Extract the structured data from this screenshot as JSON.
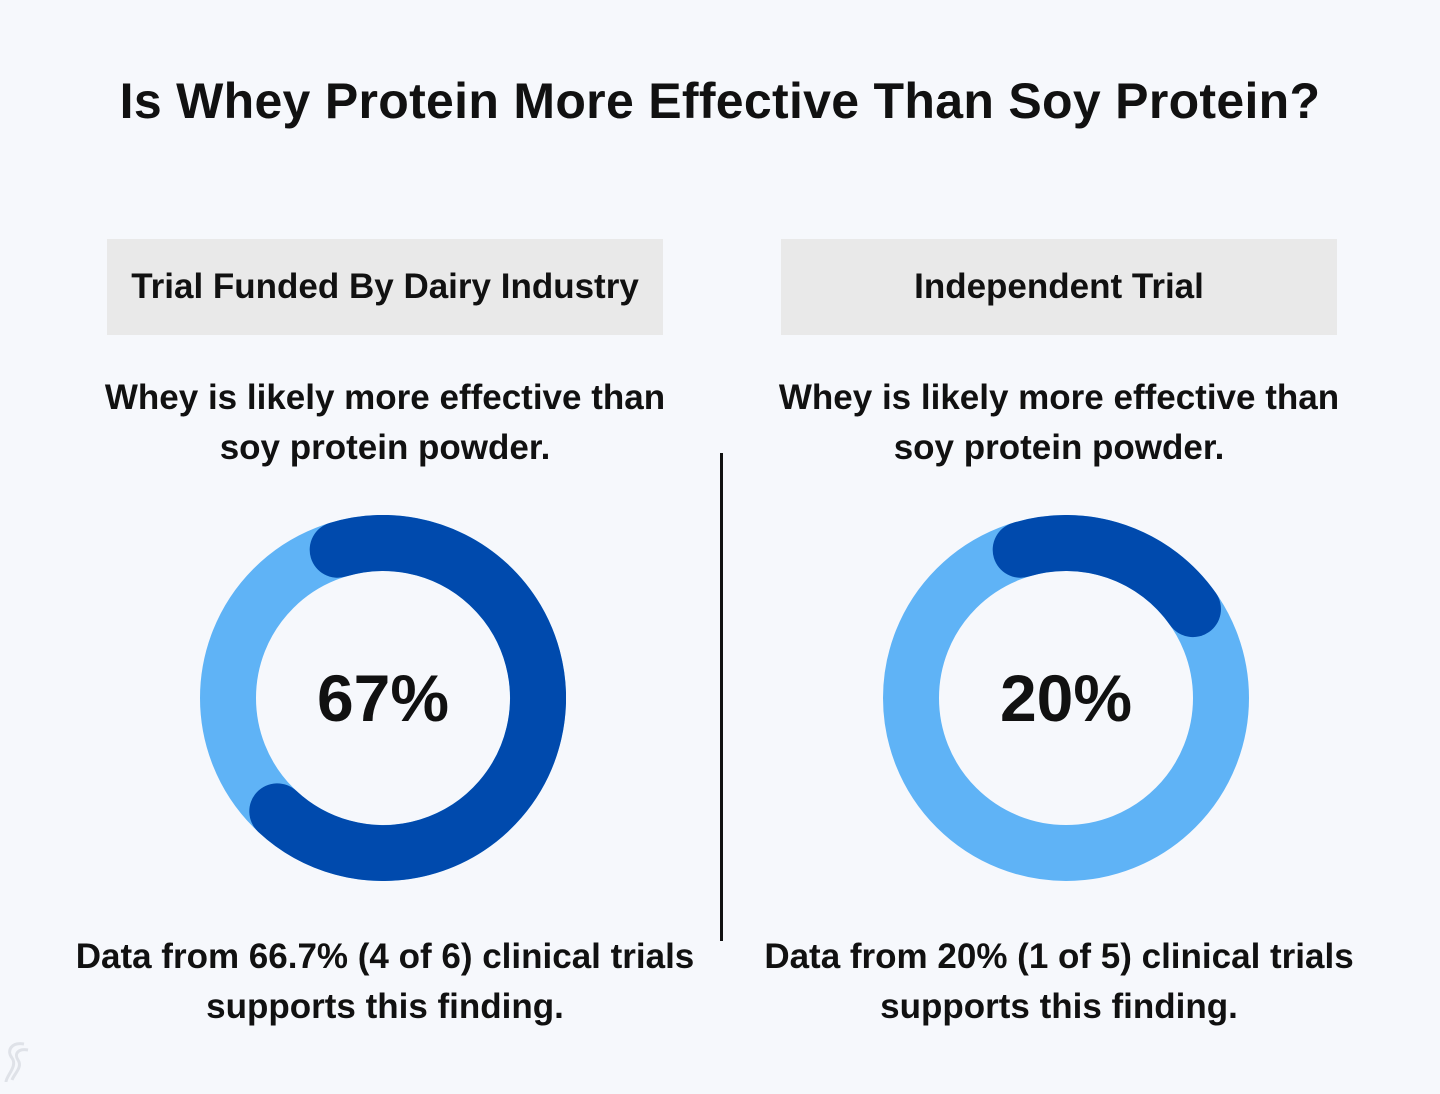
{
  "title": "Is Whey Protein More Effective Than Soy Protein?",
  "colors": {
    "background": "#f6f8fc",
    "header_bg": "#e9e9e9",
    "ring_track": "#5fb3f6",
    "ring_fill": "#004aad"
  },
  "chart_data": [
    {
      "type": "pie",
      "variant": "donut",
      "title": "Trial Funded By Dairy Industry",
      "finding": "Whey is likely more effective than soy protein powder.",
      "center_label": "67%",
      "value_percent": 66.7,
      "supporting_trials": 4,
      "total_trials": 6,
      "source_text": "Data from 66.7% (4 of 6) clinical trials supports this finding."
    },
    {
      "type": "pie",
      "variant": "donut",
      "title": "Independent Trial",
      "finding": "Whey is likely more effective than soy protein powder.",
      "center_label": "20%",
      "value_percent": 20,
      "supporting_trials": 1,
      "total_trials": 5,
      "source_text": "Data from 20% (1 of 5) clinical trials supports this finding."
    }
  ]
}
